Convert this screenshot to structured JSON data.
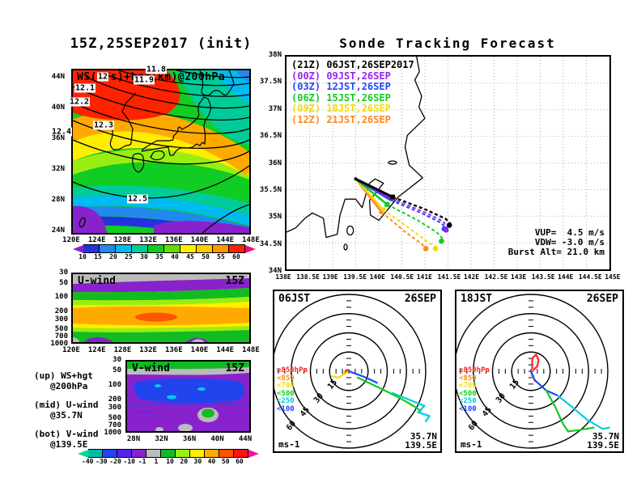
{
  "panelA": {
    "title": "15Z,25SEP2017 (init)",
    "field_label": "WS(m/s)+hgt(km)@200hPa",
    "y_ticks": [
      "44N",
      "40N",
      "36N",
      "32N",
      "28N",
      "24N"
    ],
    "x_ticks": [
      "120E",
      "124E",
      "128E",
      "132E",
      "136E",
      "140E",
      "144E",
      "148E"
    ],
    "contour_labels": [
      "12",
      "11.8",
      "11.9",
      "12.1",
      "12.2",
      "12.3",
      "12.4",
      "12.5"
    ],
    "colorbar": {
      "labels": [
        "10",
        "15",
        "20",
        "25",
        "30",
        "35",
        "40",
        "45",
        "50",
        "55",
        "60"
      ],
      "colors": [
        "#2233dd",
        "#2288ee",
        "#00bbee",
        "#00cc99",
        "#11cc22",
        "#66dd00",
        "#ffee00",
        "#ffcc00",
        "#ff9900",
        "#ff2200"
      ],
      "left_arrow": "#8822cc",
      "right_arrow": "#ee1177"
    }
  },
  "panelB": {
    "title": "Sonde Tracking Forecast",
    "legend": [
      {
        "z": "(21Z)",
        "time": "06JST,26SEP2017",
        "color": "#000000"
      },
      {
        "z": "(00Z)",
        "time": "09JST,26SEP",
        "color": "#9922ee"
      },
      {
        "z": "(03Z)",
        "time": "12JST,26SEP",
        "color": "#2244ff"
      },
      {
        "z": "(06Z)",
        "time": "15JST,26SEP",
        "color": "#11cc22"
      },
      {
        "z": "(09Z)",
        "time": "18JST,26SEP",
        "color": "#eedd00"
      },
      {
        "z": "(12Z)",
        "time": "21JST,26SEP",
        "color": "#ff8822"
      }
    ],
    "y_ticks": [
      "38N",
      "37.5N",
      "37N",
      "36.5N",
      "36N",
      "35.5N",
      "35N",
      "34.5N",
      "34N"
    ],
    "x_ticks": [
      "138E",
      "138.5E",
      "139E",
      "139.5E",
      "140E",
      "140.5E",
      "141E",
      "141.5E",
      "142E",
      "142.5E",
      "143E",
      "143.5E",
      "144E",
      "144.5E",
      "145E"
    ],
    "annotations": [
      "VUP=  4.5 m/s",
      "VDW= -3.0 m/s",
      "Burst Alt= 21.0 km"
    ],
    "bounds": {
      "lon_min": 138,
      "lon_max": 145,
      "lat_min": 34,
      "lat_max": 38
    },
    "launch": [
      139.5,
      35.7
    ],
    "tracks": [
      {
        "id": "21Z",
        "color": "#000000",
        "width": 2.4,
        "ascent": [
          [
            139.5,
            35.7
          ],
          [
            140.3,
            35.36
          ]
        ],
        "descent": [
          [
            140.3,
            35.36
          ],
          [
            141.0,
            35.13
          ],
          [
            141.45,
            34.95
          ],
          [
            141.55,
            34.86
          ]
        ],
        "end": [
          141.53,
          34.83
        ],
        "burst_shape": "square"
      },
      {
        "id": "00Z",
        "color": "#9922ee",
        "width": 2,
        "ascent": [
          [
            139.5,
            35.7
          ],
          [
            140.28,
            35.33
          ]
        ],
        "descent": [
          [
            140.28,
            35.33
          ],
          [
            141.0,
            35.07
          ],
          [
            141.4,
            34.9
          ],
          [
            141.48,
            34.78
          ]
        ],
        "end": [
          141.46,
          34.74
        ],
        "burst_shape": null
      },
      {
        "id": "03Z",
        "color": "#2244ff",
        "width": 2,
        "ascent": [
          [
            139.5,
            35.7
          ],
          [
            140.26,
            35.3
          ]
        ],
        "descent": [
          [
            140.26,
            35.3
          ],
          [
            140.97,
            35.04
          ],
          [
            141.36,
            34.87
          ],
          [
            141.44,
            34.78
          ]
        ],
        "end": [
          141.42,
          34.76
        ],
        "burst_shape": null
      },
      {
        "id": "06Z",
        "color": "#11cc22",
        "width": 2,
        "ascent": [
          [
            139.5,
            35.7
          ],
          [
            140.18,
            35.22
          ]
        ],
        "descent": [
          [
            140.18,
            35.22
          ],
          [
            140.85,
            34.92
          ],
          [
            141.25,
            34.7
          ],
          [
            141.38,
            34.58
          ]
        ],
        "end": [
          141.36,
          34.53
        ],
        "burst_shape": "square"
      },
      {
        "id": "09Z",
        "color": "#eedd00",
        "width": 2,
        "ascent": [
          [
            139.5,
            35.7
          ],
          [
            140.1,
            35.12
          ]
        ],
        "descent": [
          [
            140.1,
            35.12
          ],
          [
            140.65,
            34.78
          ],
          [
            141.05,
            34.52
          ],
          [
            141.22,
            34.43
          ]
        ],
        "end": [
          141.23,
          34.39
        ],
        "burst_shape": "circle"
      },
      {
        "id": "12Z",
        "color": "#ff8822",
        "width": 2,
        "ascent": [
          [
            139.5,
            35.7
          ],
          [
            140.06,
            35.08
          ]
        ],
        "descent": [
          [
            140.06,
            35.08
          ],
          [
            140.55,
            34.72
          ],
          [
            140.9,
            34.5
          ],
          [
            141.0,
            34.42
          ]
        ],
        "end": [
          141.02,
          34.39
        ],
        "burst_shape": "circle"
      }
    ]
  },
  "panelC": {
    "label": "U-wind",
    "time": "15Z",
    "y_ticks": [
      "30",
      "50",
      "100",
      "200",
      "300",
      "500",
      "700",
      "1000"
    ],
    "x_ticks": [
      "120E",
      "124E",
      "128E",
      "132E",
      "136E",
      "140E",
      "144E",
      "148E"
    ]
  },
  "panelD": {
    "label": "V-wind",
    "time": "15Z",
    "y_ticks": [
      "30",
      "50",
      "100",
      "200",
      "300",
      "500",
      "700",
      "1000"
    ],
    "x_ticks": [
      "28N",
      "32N",
      "36N",
      "40N",
      "44N"
    ]
  },
  "side_notes": [
    {
      "l1": "(up) WS+hgt",
      "l2": "@200hPa"
    },
    {
      "l1": "(mid) U-wind",
      "l2": "@35.7N"
    },
    {
      "l1": "(bot) V-wind",
      "l2": "@139.5E"
    }
  ],
  "colorbar2": {
    "labels": [
      "-40",
      "-30",
      "-20",
      "-10",
      "-1",
      "1",
      "10",
      "20",
      "30",
      "40",
      "50",
      "60"
    ],
    "colors": [
      "#00bbaa",
      "#2244ee",
      "#5522ee",
      "#8822cc",
      "#bbbbbb",
      "#11bb22",
      "#99ee11",
      "#ffee00",
      "#ffaa00",
      "#ff5500",
      "#ff1111"
    ],
    "left_arrow": "#00dd88",
    "right_arrow": "#ee1199"
  },
  "hodographs": [
    {
      "time": "06JST",
      "date": "26SEP",
      "unit": "ms-1",
      "station_lat": "35.7N",
      "station_lon": "139.5E",
      "rings": [
        "15",
        "30",
        "45",
        "60"
      ],
      "legend": [
        {
          "label": "≥850hPa",
          "color": "#ff2222"
        },
        {
          "label": "<850",
          "color": "#ff8800"
        },
        {
          "label": "<700",
          "color": "#eedd00"
        },
        {
          "label": "<500",
          "color": "#11cc22"
        },
        {
          "label": "<250",
          "color": "#00ccdd"
        },
        {
          "label": "<100",
          "color": "#2244ff"
        }
      ],
      "traces": [
        {
          "color": "#ff2222",
          "pts": [
            [
              0,
              0
            ],
            [
              -2,
              1
            ],
            [
              -3,
              -1
            ]
          ]
        },
        {
          "color": "#ff8800",
          "pts": [
            [
              0,
              0
            ],
            [
              -4,
              -2
            ]
          ]
        },
        {
          "color": "#eedd00",
          "pts": [
            [
              0,
              0
            ],
            [
              -8,
              -5
            ],
            [
              -13,
              -4
            ]
          ]
        },
        {
          "color": "#2244ff",
          "pts": [
            [
              0,
              0
            ],
            [
              11,
              -4
            ],
            [
              22,
              -9
            ]
          ]
        },
        {
          "color": "#11cc22",
          "pts": [
            [
              7,
              -5
            ],
            [
              24,
              -13
            ],
            [
              40,
              -21
            ],
            [
              52,
              -28
            ],
            [
              56,
              -31
            ]
          ]
        },
        {
          "color": "#00ccdd",
          "pts": [
            [
              34,
              -17
            ],
            [
              49,
              -23
            ],
            [
              59,
              -27
            ],
            [
              54,
              -32
            ],
            [
              63,
              -35
            ],
            [
              60,
              -39
            ]
          ]
        }
      ]
    },
    {
      "time": "18JST",
      "date": "26SEP",
      "unit": "ms-1",
      "station_lat": "35.7N",
      "station_lon": "139.5E",
      "rings": [
        "15",
        "30",
        "45",
        "60"
      ],
      "legend": [
        {
          "label": "≥850hPa",
          "color": "#ff2222"
        },
        {
          "label": "<850",
          "color": "#ff8800"
        },
        {
          "label": "<700",
          "color": "#eedd00"
        },
        {
          "label": "<500",
          "color": "#11cc22"
        },
        {
          "label": "<250",
          "color": "#00ccdd"
        },
        {
          "label": "<100",
          "color": "#2244ff"
        }
      ],
      "traces": [
        {
          "color": "#ff2222",
          "pts": [
            [
              1,
              2
            ],
            [
              1,
              10
            ],
            [
              4,
              13
            ],
            [
              6,
              9
            ],
            [
              5,
              4
            ],
            [
              2,
              1
            ]
          ]
        },
        {
          "color": "#ff8800",
          "pts": [
            [
              0,
              0
            ],
            [
              1,
              -4
            ]
          ]
        },
        {
          "color": "#eedd00",
          "pts": [
            [
              1,
              -3
            ],
            [
              3,
              -8
            ]
          ]
        },
        {
          "color": "#2244ff",
          "pts": [
            [
              0,
              0
            ],
            [
              3,
              -7
            ],
            [
              12,
              -15
            ],
            [
              21,
              -19
            ]
          ]
        },
        {
          "color": "#11cc22",
          "pts": [
            [
              12,
              -15
            ],
            [
              19,
              -28
            ],
            [
              25,
              -41
            ],
            [
              29,
              -47
            ],
            [
              37,
              -46
            ],
            [
              49,
              -44
            ]
          ]
        },
        {
          "color": "#00ccdd",
          "pts": [
            [
              21,
              -19
            ],
            [
              31,
              -27
            ],
            [
              44,
              -38
            ],
            [
              56,
              -45
            ],
            [
              61,
              -44
            ]
          ]
        }
      ]
    }
  ],
  "chart_data": [
    {
      "type": "heatmap",
      "title": "15Z,25SEP2017 (init)",
      "field": "WS(m/s)+hgt(km)@200hPa",
      "x_ticks": [
        "120E",
        "124E",
        "128E",
        "132E",
        "136E",
        "140E",
        "144E",
        "148E"
      ],
      "y_ticks": [
        "44N",
        "40N",
        "36N",
        "32N",
        "28N",
        "24N"
      ],
      "colorbar_levels": [
        10,
        15,
        20,
        25,
        30,
        35,
        40,
        45,
        50,
        55,
        60
      ],
      "colorbar_unit": "m/s",
      "contour_labels_km": [
        11.8,
        11.9,
        12,
        12.1,
        12.2,
        12.3,
        12.4,
        12.5
      ]
    },
    {
      "type": "line",
      "title": "Sonde Tracking Forecast",
      "lon_range": [
        138,
        145
      ],
      "lat_range": [
        34,
        38
      ],
      "launch_point": [
        139.5,
        35.7
      ],
      "series": [
        {
          "name": "(21Z) 06JST,26SEP2017",
          "landing": [
            141.53,
            34.83
          ]
        },
        {
          "name": "(00Z) 09JST,26SEP",
          "landing": [
            141.46,
            34.74
          ]
        },
        {
          "name": "(03Z) 12JST,26SEP",
          "landing": [
            141.42,
            34.76
          ]
        },
        {
          "name": "(06Z) 15JST,26SEP",
          "landing": [
            141.36,
            34.53
          ]
        },
        {
          "name": "(09Z) 18JST,26SEP",
          "landing": [
            141.23,
            34.39
          ]
        },
        {
          "name": "(12Z) 21JST,26SEP",
          "landing": [
            141.02,
            34.39
          ]
        }
      ],
      "annotations": [
        "VUP= 4.5 m/s",
        "VDW= -3.0 m/s",
        "Burst Alt= 21.0 km"
      ]
    },
    {
      "type": "heatmap",
      "title": "U-wind 15Z @35.7N",
      "x_ticks": [
        "120E",
        "124E",
        "128E",
        "132E",
        "136E",
        "140E",
        "144E",
        "148E"
      ],
      "y_ticks_hPa": [
        30,
        50,
        100,
        200,
        300,
        500,
        700,
        1000
      ],
      "colorbar_levels": [
        -40,
        -30,
        -20,
        -10,
        -1,
        1,
        10,
        20,
        30,
        40,
        50,
        60
      ],
      "unit": "m/s"
    },
    {
      "type": "heatmap",
      "title": "V-wind 15Z @139.5E",
      "x_ticks": [
        "28N",
        "32N",
        "36N",
        "40N",
        "44N"
      ],
      "y_ticks_hPa": [
        30,
        50,
        100,
        200,
        300,
        500,
        700,
        1000
      ],
      "colorbar_levels": [
        -40,
        -30,
        -20,
        -10,
        -1,
        1,
        10,
        20,
        30,
        40,
        50,
        60
      ],
      "unit": "m/s"
    },
    {
      "type": "line",
      "title": "Hodograph 06JST 26SEP (35.7N 139.5E)",
      "unit": "ms-1",
      "ring_radii": [
        15,
        30,
        45,
        60
      ],
      "layers": [
        "≥850hPa",
        "<850",
        "<700",
        "<500",
        "<250",
        "<100"
      ]
    },
    {
      "type": "line",
      "title": "Hodograph 18JST 26SEP (35.7N 139.5E)",
      "unit": "ms-1",
      "ring_radii": [
        15,
        30,
        45,
        60
      ],
      "layers": [
        "≥850hPa",
        "<850",
        "<700",
        "<500",
        "<250",
        "<100"
      ]
    }
  ]
}
